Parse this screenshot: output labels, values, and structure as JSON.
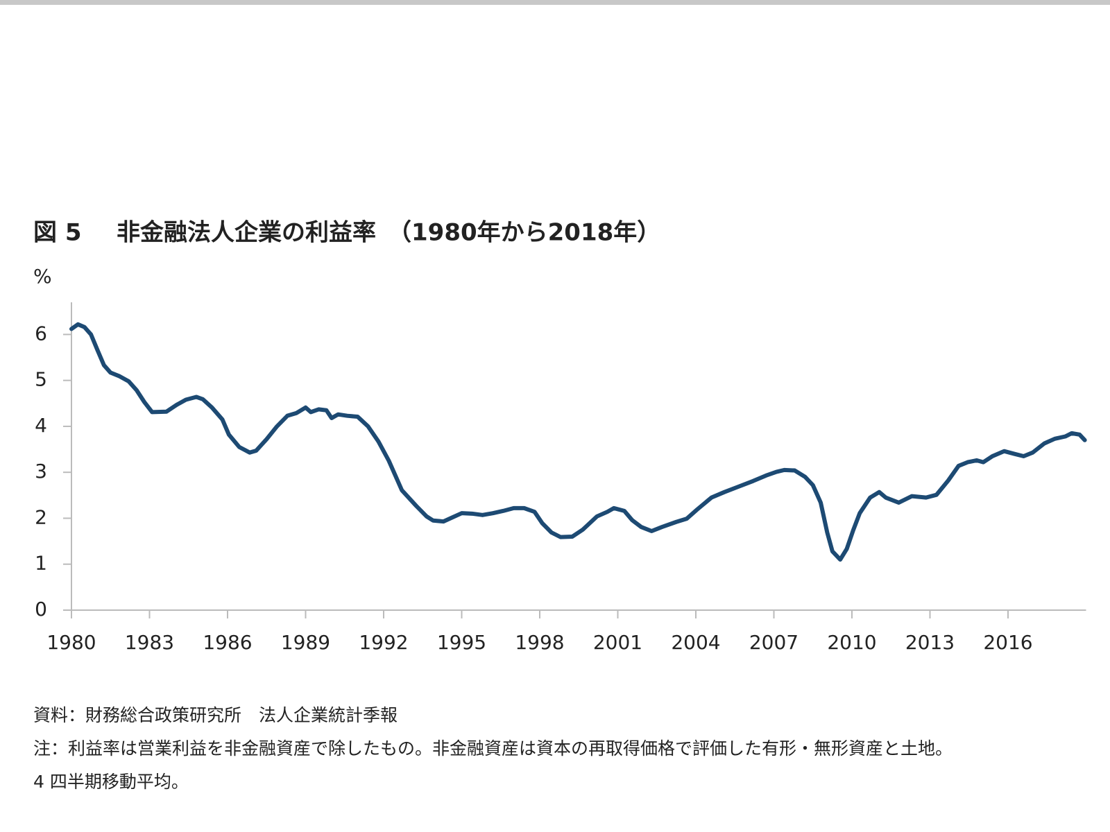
{
  "chart_data": {
    "type": "line",
    "figure_label": "図 5",
    "title": "非金融法人企業の利益率　（1980年から2018年）",
    "y_label": "%",
    "source": "資料：財務総合政策研究所　法人企業統計季報",
    "notes": [
      "注：利益率は営業利益を非金融資産で除したもの。非金融資産は資本の再取得価格で評価した有形・無形資産と土地。",
      "4 四半期移動平均。"
    ],
    "xlim": [
      1980,
      2019
    ],
    "xticks": [
      1980,
      1983,
      1986,
      1989,
      1992,
      1995,
      1998,
      2001,
      2004,
      2007,
      2010,
      2013,
      2016
    ],
    "ylim": [
      0,
      6.7
    ],
    "yticks": [
      0,
      1,
      2,
      3,
      4,
      5,
      6
    ],
    "x": [
      1980.0,
      1980.25,
      1980.5,
      1980.75,
      1981.0,
      1981.25,
      1981.5,
      1981.85,
      1982.2,
      1982.5,
      1982.8,
      1983.1,
      1983.65,
      1984.05,
      1984.4,
      1984.8,
      1985.05,
      1985.4,
      1985.8,
      1986.05,
      1986.45,
      1986.85,
      1987.1,
      1987.5,
      1987.9,
      1988.3,
      1988.65,
      1989.0,
      1989.2,
      1989.5,
      1989.8,
      1990.0,
      1990.25,
      1990.6,
      1991.0,
      1991.4,
      1991.8,
      1992.2,
      1992.7,
      1993.25,
      1993.65,
      1993.9,
      1994.3,
      1994.65,
      1995.0,
      1995.4,
      1995.8,
      1996.2,
      1996.6,
      1997.0,
      1997.4,
      1997.8,
      1998.1,
      1998.45,
      1998.8,
      1999.25,
      1999.65,
      2000.2,
      2000.6,
      2000.85,
      2001.25,
      2001.55,
      2001.9,
      2002.3,
      2002.7,
      2003.25,
      2003.65,
      2004.05,
      2004.6,
      2005.1,
      2005.65,
      2006.2,
      2006.7,
      2007.1,
      2007.4,
      2007.8,
      2008.2,
      2008.5,
      2008.8,
      2009.05,
      2009.25,
      2009.55,
      2009.8,
      2010.05,
      2010.3,
      2010.7,
      2011.05,
      2011.3,
      2011.8,
      2012.3,
      2012.85,
      2013.25,
      2013.7,
      2014.1,
      2014.45,
      2014.8,
      2015.05,
      2015.4,
      2015.85,
      2016.25,
      2016.6,
      2016.95,
      2017.4,
      2017.8,
      2018.2,
      2018.45,
      2018.75,
      2018.95
    ],
    "series": [
      {
        "color": "#1d4a73",
        "values": [
          6.12,
          6.22,
          6.16,
          6.0,
          5.66,
          5.33,
          5.17,
          5.09,
          4.98,
          4.79,
          4.53,
          4.31,
          4.32,
          4.47,
          4.58,
          4.64,
          4.59,
          4.41,
          4.15,
          3.82,
          3.55,
          3.43,
          3.47,
          3.72,
          4.0,
          4.23,
          4.29,
          4.41,
          4.31,
          4.37,
          4.35,
          4.18,
          4.26,
          4.23,
          4.21,
          4.0,
          3.67,
          3.25,
          2.61,
          2.27,
          2.04,
          1.95,
          1.93,
          2.02,
          2.11,
          2.1,
          2.07,
          2.11,
          2.16,
          2.22,
          2.22,
          2.14,
          1.89,
          1.69,
          1.59,
          1.6,
          1.75,
          2.04,
          2.14,
          2.22,
          2.16,
          1.96,
          1.81,
          1.72,
          1.81,
          1.92,
          1.99,
          2.19,
          2.45,
          2.57,
          2.69,
          2.81,
          2.93,
          3.01,
          3.05,
          3.04,
          2.9,
          2.72,
          2.34,
          1.69,
          1.28,
          1.1,
          1.33,
          1.74,
          2.11,
          2.45,
          2.57,
          2.45,
          2.34,
          2.48,
          2.45,
          2.51,
          2.82,
          3.14,
          3.22,
          3.26,
          3.22,
          3.35,
          3.46,
          3.4,
          3.35,
          3.43,
          3.63,
          3.73,
          3.78,
          3.85,
          3.82,
          3.7
        ]
      }
    ]
  }
}
